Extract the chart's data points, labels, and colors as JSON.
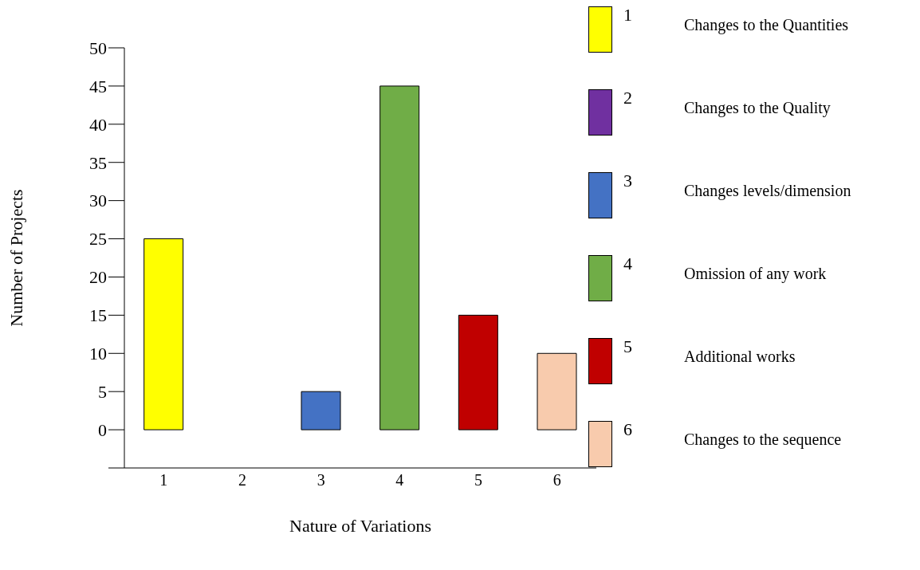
{
  "chart_data": {
    "type": "bar",
    "xlabel": "Nature of Variations",
    "ylabel": "Number of Projects",
    "categories": [
      "1",
      "2",
      "3",
      "4",
      "5",
      "6"
    ],
    "values": [
      25,
      0,
      5,
      45,
      15,
      10
    ],
    "colors": [
      "#ffff00",
      "#7030a0",
      "#4472c4",
      "#70ad47",
      "#c00000",
      "#f8cbad"
    ],
    "annotations": [
      "Changes to the Quantities",
      "Changes to the Quality",
      "Changes levels/dimension",
      "Omission of any work",
      "Additional works",
      "Changes to the sequence"
    ],
    "ylim": [
      -5,
      50
    ],
    "yticks": [
      {
        "value": -5,
        "label": null
      },
      0,
      5,
      10,
      15,
      20,
      25,
      30,
      35,
      40,
      45,
      50
    ],
    "grid": false
  }
}
